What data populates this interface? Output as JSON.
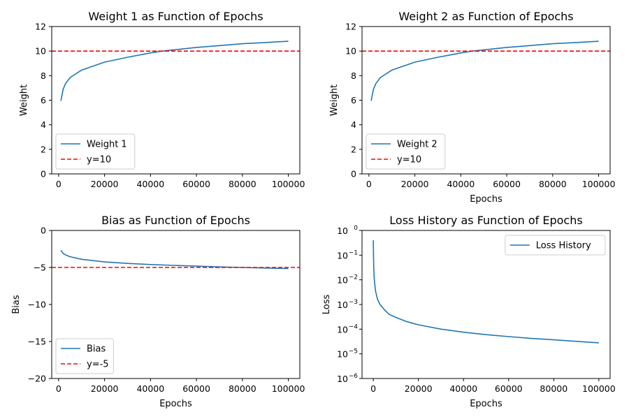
{
  "chart_data": [
    {
      "type": "line",
      "title": "Weight 1 as Function of Epochs",
      "xlabel": "",
      "ylabel": "Weight",
      "xlim": [
        -3000,
        105000
      ],
      "ylim": [
        0,
        12
      ],
      "yscale": "linear",
      "xticks": [
        0,
        20000,
        40000,
        60000,
        80000,
        100000
      ],
      "xtick_labels": [
        "0",
        "20000",
        "40000",
        "60000",
        "80000",
        "100000"
      ],
      "yticks": [
        0,
        2,
        4,
        6,
        8,
        10,
        12
      ],
      "ytick_labels": [
        "0",
        "2",
        "4",
        "6",
        "8",
        "10",
        "12"
      ],
      "legend_position": "lower-left",
      "series": [
        {
          "name": "Weight 1",
          "color": "#1f77b4",
          "style": "solid",
          "x": [
            1000,
            2000,
            3000,
            5000,
            10000,
            20000,
            30000,
            40000,
            45000,
            50000,
            60000,
            70000,
            80000,
            90000,
            100000
          ],
          "y": [
            5.95,
            6.9,
            7.35,
            7.85,
            8.45,
            9.1,
            9.5,
            9.85,
            10.0,
            10.1,
            10.3,
            10.45,
            10.6,
            10.7,
            10.8
          ]
        },
        {
          "name": "y=10",
          "color": "#ff0000",
          "style": "dashed",
          "hline": 10
        }
      ]
    },
    {
      "type": "line",
      "title": "Weight 2 as Function of Epochs",
      "xlabel": "Epochs",
      "ylabel": "Weight",
      "xlim": [
        -3000,
        105000
      ],
      "ylim": [
        0,
        12
      ],
      "yscale": "linear",
      "xticks": [
        0,
        20000,
        40000,
        60000,
        80000,
        100000
      ],
      "xtick_labels": [
        "0",
        "20000",
        "40000",
        "60000",
        "80000",
        "100000"
      ],
      "yticks": [
        0,
        2,
        4,
        6,
        8,
        10,
        12
      ],
      "ytick_labels": [
        "0",
        "2",
        "4",
        "6",
        "8",
        "10",
        "12"
      ],
      "legend_position": "lower-left",
      "series": [
        {
          "name": "Weight 2",
          "color": "#1f77b4",
          "style": "solid",
          "x": [
            1000,
            2000,
            3000,
            5000,
            10000,
            20000,
            30000,
            40000,
            45000,
            50000,
            60000,
            70000,
            80000,
            90000,
            100000
          ],
          "y": [
            5.95,
            6.9,
            7.35,
            7.85,
            8.45,
            9.1,
            9.5,
            9.85,
            10.0,
            10.1,
            10.3,
            10.45,
            10.6,
            10.7,
            10.8
          ]
        },
        {
          "name": "y=10",
          "color": "#ff0000",
          "style": "dashed",
          "hline": 10
        }
      ]
    },
    {
      "type": "line",
      "title": "Bias as Function of Epochs",
      "xlabel": "Epochs",
      "ylabel": "Bias",
      "xlim": [
        -3000,
        105000
      ],
      "ylim": [
        -20,
        0
      ],
      "yscale": "linear",
      "xticks": [
        0,
        20000,
        40000,
        60000,
        80000,
        100000
      ],
      "xtick_labels": [
        "0",
        "20000",
        "40000",
        "60000",
        "80000",
        "100000"
      ],
      "yticks": [
        -20,
        -15,
        -10,
        -5,
        0
      ],
      "ytick_labels": [
        "−20",
        "−15",
        "−10",
        "−5",
        "0"
      ],
      "legend_position": "lower-left",
      "series": [
        {
          "name": "Bias",
          "color": "#1f77b4",
          "style": "solid",
          "x": [
            1000,
            2000,
            3000,
            5000,
            10000,
            20000,
            30000,
            40000,
            50000,
            60000,
            70000,
            80000,
            90000,
            100000
          ],
          "y": [
            -2.7,
            -3.1,
            -3.3,
            -3.55,
            -3.9,
            -4.25,
            -4.45,
            -4.6,
            -4.72,
            -4.82,
            -4.92,
            -5.0,
            -5.08,
            -5.15
          ]
        },
        {
          "name": "y=-5",
          "color": "#ff0000",
          "style": "dashed",
          "hline": -5
        }
      ]
    },
    {
      "type": "line",
      "title": "Loss History as Function of Epochs",
      "xlabel": "Epochs",
      "ylabel": "Loss",
      "xlim": [
        -5000,
        105000
      ],
      "ylim": [
        1e-06,
        1
      ],
      "yscale": "log",
      "xticks": [
        0,
        20000,
        40000,
        60000,
        80000,
        100000
      ],
      "xtick_labels": [
        "0",
        "20000",
        "40000",
        "60000",
        "80000",
        "100000"
      ],
      "yticks": [
        1e-06,
        1e-05,
        0.0001,
        0.001,
        0.01,
        0.1,
        1
      ],
      "ytick_labels": [
        {
          "base": "10",
          "exp": "−6"
        },
        {
          "base": "10",
          "exp": "−5"
        },
        {
          "base": "10",
          "exp": "−4"
        },
        {
          "base": "10",
          "exp": "−3"
        },
        {
          "base": "10",
          "exp": "−2"
        },
        {
          "base": "10",
          "exp": "−1"
        },
        {
          "base": "10",
          "exp": "0"
        }
      ],
      "legend_position": "upper-right",
      "series": [
        {
          "name": "Loss History",
          "color": "#1f77b4",
          "style": "solid",
          "x": [
            0,
            100,
            200,
            400,
            700,
            1000,
            1500,
            2000,
            3000,
            5000,
            7000,
            10000,
            15000,
            20000,
            30000,
            40000,
            50000,
            60000,
            70000,
            80000,
            90000,
            100000
          ],
          "y": [
            0.4,
            0.08,
            0.03,
            0.012,
            0.006,
            0.0035,
            0.0022,
            0.0015,
            0.001,
            0.0006,
            0.0004,
            0.0003,
            0.0002,
            0.00015,
            0.0001,
            7.5e-05,
            6e-05,
            5e-05,
            4.2e-05,
            3.7e-05,
            3.2e-05,
            2.8e-05
          ]
        }
      ]
    }
  ]
}
